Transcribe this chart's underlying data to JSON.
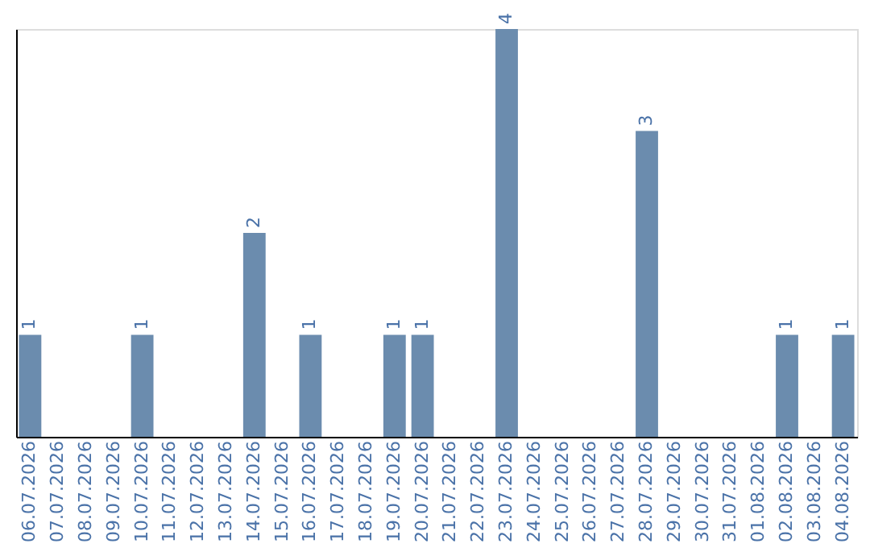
{
  "chart_data": {
    "type": "bar",
    "categories": [
      "06.07.2026",
      "07.07.2026",
      "08.07.2026",
      "09.07.2026",
      "10.07.2026",
      "11.07.2026",
      "12.07.2026",
      "13.07.2026",
      "14.07.2026",
      "15.07.2026",
      "16.07.2026",
      "17.07.2026",
      "18.07.2026",
      "19.07.2026",
      "20.07.2026",
      "21.07.2026",
      "22.07.2026",
      "23.07.2026",
      "24.07.2026",
      "25.07.2026",
      "26.07.2026",
      "27.07.2026",
      "28.07.2026",
      "29.07.2026",
      "30.07.2026",
      "31.07.2026",
      "01.08.2026",
      "02.08.2026",
      "03.08.2026",
      "04.08.2026"
    ],
    "values": [
      1,
      0,
      0,
      0,
      1,
      0,
      0,
      0,
      2,
      0,
      1,
      0,
      0,
      1,
      1,
      0,
      0,
      4,
      0,
      0,
      0,
      0,
      3,
      0,
      0,
      0,
      0,
      1,
      0,
      1
    ],
    "value_labels": [
      "1",
      null,
      null,
      null,
      "1",
      null,
      null,
      null,
      "2",
      null,
      "1",
      null,
      null,
      "1",
      "1",
      null,
      null,
      "4",
      null,
      null,
      null,
      null,
      "3",
      null,
      null,
      null,
      null,
      "1",
      null,
      "1"
    ],
    "color": "#6b8cae",
    "ylim": [
      0,
      4
    ],
    "grid": false,
    "tick_labels": "x"
  }
}
